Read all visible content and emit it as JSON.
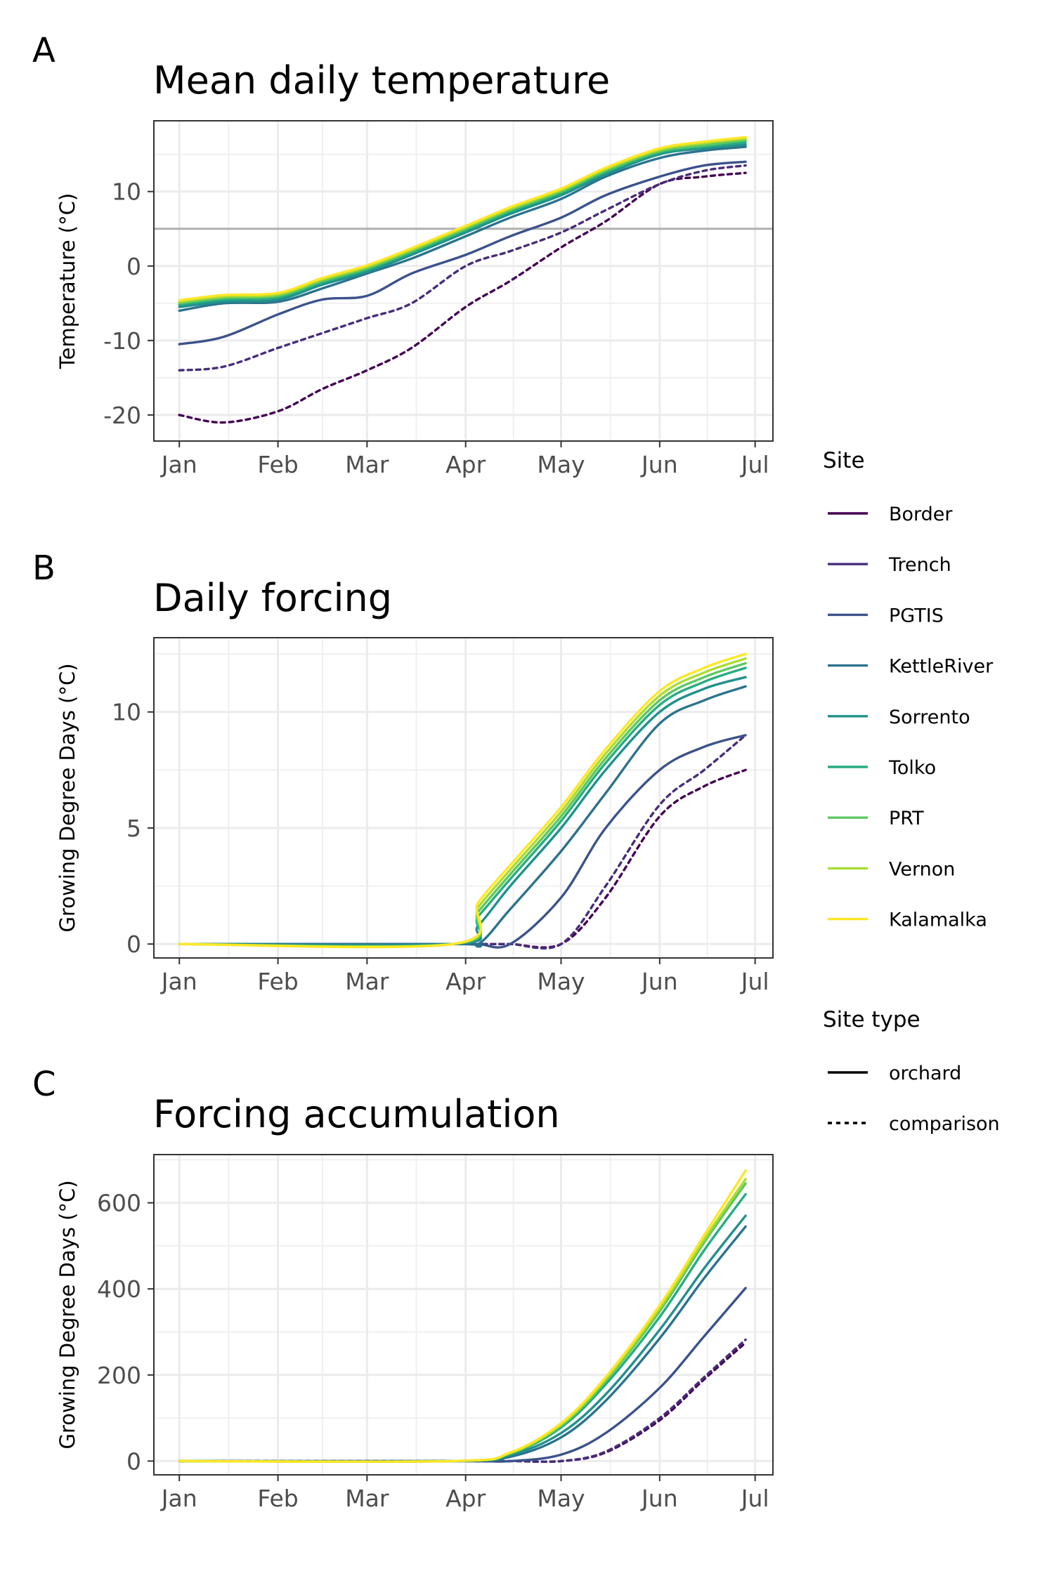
{
  "legend": {
    "site_title": "Site",
    "type_title": "Site type",
    "sites": [
      {
        "name": "Border",
        "color": "#440154"
      },
      {
        "name": "Trench",
        "color": "#472D7B"
      },
      {
        "name": "PGTIS",
        "color": "#3B528B"
      },
      {
        "name": "KettleRiver",
        "color": "#2C728E"
      },
      {
        "name": "Sorrento",
        "color": "#21908C"
      },
      {
        "name": "Tolko",
        "color": "#27AD81"
      },
      {
        "name": "PRT",
        "color": "#5DC863"
      },
      {
        "name": "Vernon",
        "color": "#AADC32"
      },
      {
        "name": "Kalamalka",
        "color": "#FDE725"
      }
    ],
    "types": [
      {
        "name": "orchard",
        "dash": "solid"
      },
      {
        "name": "comparison",
        "dash": "dashed"
      }
    ]
  },
  "chart_data": [
    {
      "panel": "A",
      "type": "line",
      "title": "Mean daily temperature",
      "xlabel": "",
      "ylabel": "Temperature (°C)",
      "x_ticks": [
        "Jan",
        "Feb",
        "Mar",
        "Apr",
        "May",
        "Jun",
        "Jul"
      ],
      "y_ticks": [
        -20,
        -10,
        0,
        10
      ],
      "ylim": [
        -23.5,
        19.5
      ],
      "reference_line": 5,
      "grid": true,
      "legend": "right",
      "x": [
        "Jan 1",
        "Jan 15",
        "Feb 1",
        "Feb 15",
        "Mar 1",
        "Mar 15",
        "Apr 1",
        "Apr 15",
        "May 1",
        "May 15",
        "Jun 1",
        "Jun 15",
        "Jun 28"
      ],
      "series": [
        {
          "name": "Border",
          "site_type": "comparison",
          "values": [
            -20,
            -21,
            -19.5,
            -16.5,
            -14,
            -11,
            -5.5,
            -2,
            2.5,
            6,
            11,
            12,
            12.5
          ]
        },
        {
          "name": "Trench",
          "site_type": "comparison",
          "values": [
            -14,
            -13.5,
            -11,
            -9,
            -7,
            -5,
            0,
            2,
            4.5,
            7.5,
            11,
            12.8,
            13.5
          ]
        },
        {
          "name": "PGTIS",
          "site_type": "orchard",
          "values": [
            -10.5,
            -9.5,
            -6.5,
            -4.5,
            -4,
            -1,
            1.5,
            4,
            6.5,
            9.5,
            12,
            13.5,
            14
          ]
        },
        {
          "name": "KettleRiver",
          "site_type": "orchard",
          "values": [
            -6,
            -5,
            -4.8,
            -3,
            -1,
            1,
            4,
            6.5,
            9,
            12,
            14.5,
            15.5,
            16
          ]
        },
        {
          "name": "Sorrento",
          "site_type": "orchard",
          "values": [
            -5.5,
            -4.8,
            -4.5,
            -2.5,
            -0.8,
            1.5,
            4.5,
            7,
            9.5,
            12.3,
            15,
            15.8,
            16.3
          ]
        },
        {
          "name": "Tolko",
          "site_type": "orchard",
          "values": [
            -5.2,
            -4.5,
            -4.2,
            -2.2,
            -0.5,
            1.8,
            4.8,
            7.3,
            9.8,
            12.6,
            15.2,
            16,
            16.6
          ]
        },
        {
          "name": "PRT",
          "site_type": "orchard",
          "values": [
            -5,
            -4.3,
            -4,
            -2,
            -0.3,
            2,
            5,
            7.5,
            10,
            12.8,
            15.4,
            16.2,
            16.9
          ]
        },
        {
          "name": "Vernon",
          "site_type": "orchard",
          "values": [
            -4.8,
            -4.1,
            -3.8,
            -1.8,
            -0.1,
            2.2,
            5.2,
            7.7,
            10.2,
            13,
            15.6,
            16.5,
            17.1
          ]
        },
        {
          "name": "Kalamalka",
          "site_type": "orchard",
          "values": [
            -4.6,
            -3.9,
            -3.6,
            -1.6,
            0.1,
            2.4,
            5.4,
            7.9,
            10.4,
            13.2,
            15.8,
            16.7,
            17.3
          ]
        }
      ]
    },
    {
      "panel": "B",
      "type": "line",
      "title": "Daily forcing",
      "xlabel": "",
      "ylabel": "Growing Degree Days (°C)",
      "x_ticks": [
        "Jan",
        "Feb",
        "Mar",
        "Apr",
        "May",
        "Jun",
        "Jul"
      ],
      "y_ticks": [
        0,
        5,
        10
      ],
      "ylim": [
        -0.6,
        13.2
      ],
      "grid": true,
      "legend": "right",
      "x": [
        "Jan 1",
        "Mar 28",
        "Apr 5",
        "Apr 15",
        "May 1",
        "May 15",
        "Jun 1",
        "Jun 15",
        "Jun 28"
      ],
      "series": [
        {
          "name": "Border",
          "site_type": "comparison",
          "values": [
            0,
            0,
            0,
            0,
            0,
            2,
            5.5,
            6.8,
            7.5
          ]
        },
        {
          "name": "Trench",
          "site_type": "comparison",
          "values": [
            0,
            0,
            0,
            0,
            0,
            2.5,
            6,
            7.5,
            9
          ]
        },
        {
          "name": "PGTIS",
          "site_type": "orchard",
          "values": [
            0,
            0,
            0,
            0,
            2,
            5,
            7.5,
            8.5,
            9
          ]
        },
        {
          "name": "KettleRiver",
          "site_type": "orchard",
          "values": [
            0,
            0,
            0,
            1.5,
            4,
            6.5,
            9.5,
            10.5,
            11.1
          ]
        },
        {
          "name": "Sorrento",
          "site_type": "orchard",
          "values": [
            0,
            0,
            0.8,
            2.5,
            5,
            7.5,
            10,
            11,
            11.5
          ]
        },
        {
          "name": "Tolko",
          "site_type": "orchard",
          "values": [
            0,
            0,
            1.2,
            2.8,
            5.3,
            7.8,
            10.3,
            11.3,
            11.9
          ]
        },
        {
          "name": "PRT",
          "site_type": "orchard",
          "values": [
            0,
            0,
            1.4,
            3,
            5.5,
            8,
            10.5,
            11.5,
            12.1
          ]
        },
        {
          "name": "Vernon",
          "site_type": "orchard",
          "values": [
            0,
            0,
            1.6,
            3.2,
            5.7,
            8.2,
            10.7,
            11.7,
            12.3
          ]
        },
        {
          "name": "Kalamalka",
          "site_type": "orchard",
          "values": [
            0,
            0,
            1.8,
            3.4,
            5.9,
            8.4,
            10.9,
            11.9,
            12.5
          ]
        }
      ]
    },
    {
      "panel": "C",
      "type": "line",
      "title": "Forcing accumulation",
      "xlabel": "",
      "ylabel": "Growing Degree Days (°C)",
      "x_ticks": [
        "Jan",
        "Feb",
        "Mar",
        "Apr",
        "May",
        "Jun",
        "Jul"
      ],
      "y_ticks": [
        0,
        200,
        400,
        600
      ],
      "ylim": [
        -32,
        712
      ],
      "grid": true,
      "legend": "right",
      "x": [
        "Jan 1",
        "Mar 28",
        "Apr 15",
        "May 1",
        "May 15",
        "Jun 1",
        "Jun 15",
        "Jun 28"
      ],
      "series": [
        {
          "name": "Border",
          "site_type": "comparison",
          "values": [
            0,
            0,
            0,
            0,
            20,
            95,
            190,
            275
          ]
        },
        {
          "name": "Trench",
          "site_type": "comparison",
          "values": [
            0,
            0,
            0,
            0,
            22,
            100,
            195,
            282
          ]
        },
        {
          "name": "PGTIS",
          "site_type": "orchard",
          "values": [
            0,
            0,
            0,
            15,
            65,
            170,
            290,
            402
          ]
        },
        {
          "name": "KettleRiver",
          "site_type": "orchard",
          "values": [
            0,
            0,
            10,
            55,
            140,
            285,
            425,
            545
          ]
        },
        {
          "name": "Sorrento",
          "site_type": "orchard",
          "values": [
            0,
            0,
            14,
            65,
            155,
            305,
            448,
            570
          ]
        },
        {
          "name": "Tolko",
          "site_type": "orchard",
          "values": [
            0,
            0,
            17,
            78,
            178,
            335,
            490,
            620
          ]
        },
        {
          "name": "PRT",
          "site_type": "orchard",
          "values": [
            0,
            0,
            18,
            82,
            186,
            348,
            508,
            645
          ]
        },
        {
          "name": "Vernon",
          "site_type": "orchard",
          "values": [
            0,
            0,
            19,
            85,
            190,
            355,
            515,
            655
          ]
        },
        {
          "name": "Kalamalka",
          "site_type": "orchard",
          "values": [
            0,
            0,
            20,
            88,
            195,
            362,
            525,
            675
          ]
        }
      ]
    }
  ]
}
